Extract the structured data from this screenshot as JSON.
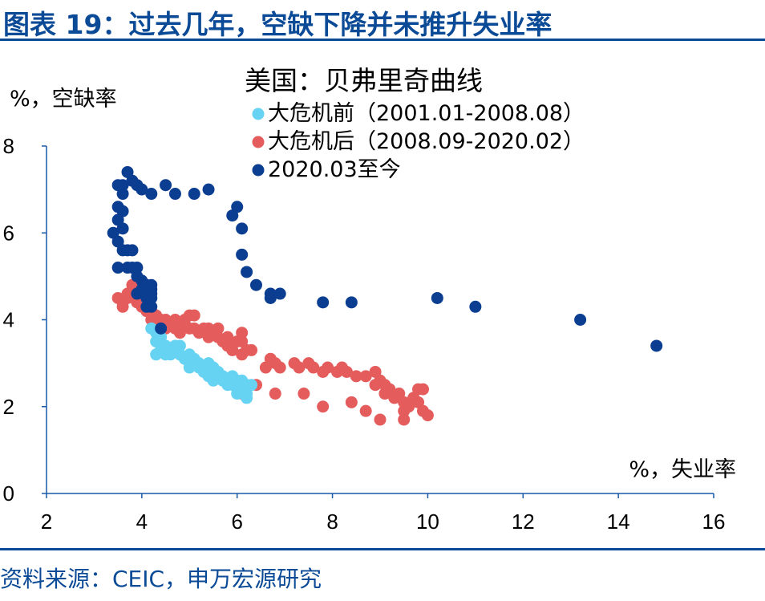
{
  "figure": {
    "title": "图表 19：过去几年，空缺下降并未推升失业率",
    "source": "资料来源：CEIC，申万宏源研究",
    "colors": {
      "brand": "#0b4a96"
    }
  },
  "chart_data": {
    "type": "scatter",
    "title": "美国：贝弗里奇曲线",
    "xlabel": "%，失业率",
    "ylabel": "%，空缺率",
    "xlim": [
      2,
      16
    ],
    "ylim": [
      0,
      8
    ],
    "xticks": [
      "2",
      "4",
      "6",
      "8",
      "10",
      "12",
      "14",
      "16"
    ],
    "yticks": [
      "0",
      "2",
      "4",
      "6",
      "8"
    ],
    "grid": false,
    "legend_position": "top-right",
    "series": [
      {
        "name": "大危机前（2001.01-2008.08）",
        "color": "#66d3f2",
        "points": [
          [
            4.2,
            3.8
          ],
          [
            4.3,
            3.7
          ],
          [
            4.3,
            3.5
          ],
          [
            4.4,
            3.6
          ],
          [
            4.5,
            3.4
          ],
          [
            4.4,
            3.3
          ],
          [
            4.3,
            3.2
          ],
          [
            4.6,
            3.3
          ],
          [
            4.7,
            3.4
          ],
          [
            4.6,
            3.2
          ],
          [
            4.5,
            3.2
          ],
          [
            4.8,
            3.4
          ],
          [
            4.8,
            3.2
          ],
          [
            4.9,
            3.1
          ],
          [
            5.0,
            3.0
          ],
          [
            5.0,
            3.2
          ],
          [
            5.1,
            3.1
          ],
          [
            5.1,
            3.0
          ],
          [
            5.0,
            2.9
          ],
          [
            5.2,
            2.9
          ],
          [
            5.2,
            3.0
          ],
          [
            5.3,
            2.8
          ],
          [
            5.3,
            2.9
          ],
          [
            5.4,
            2.8
          ],
          [
            5.4,
            3.0
          ],
          [
            5.5,
            2.9
          ],
          [
            5.5,
            2.8
          ],
          [
            5.4,
            2.7
          ],
          [
            5.6,
            2.7
          ],
          [
            5.5,
            2.6
          ],
          [
            5.7,
            2.7
          ],
          [
            5.7,
            2.6
          ],
          [
            5.8,
            2.6
          ],
          [
            5.6,
            2.8
          ],
          [
            5.9,
            2.7
          ],
          [
            5.9,
            2.5
          ],
          [
            6.0,
            2.6
          ],
          [
            6.1,
            2.6
          ],
          [
            6.0,
            2.5
          ],
          [
            5.8,
            2.5
          ],
          [
            6.0,
            2.3
          ],
          [
            6.1,
            2.4
          ],
          [
            6.2,
            2.5
          ],
          [
            6.3,
            2.5
          ],
          [
            6.2,
            2.3
          ],
          [
            6.2,
            2.2
          ]
        ]
      },
      {
        "name": "大危机后（2008.09-2020.02）",
        "color": "#e45c5c",
        "points": [
          [
            3.5,
            4.5
          ],
          [
            3.6,
            4.4
          ],
          [
            3.6,
            4.3
          ],
          [
            3.7,
            4.5
          ],
          [
            3.7,
            4.6
          ],
          [
            3.8,
            4.7
          ],
          [
            3.8,
            4.8
          ],
          [
            3.9,
            4.6
          ],
          [
            3.9,
            4.4
          ],
          [
            4.0,
            4.3
          ],
          [
            4.1,
            4.4
          ],
          [
            4.1,
            4.2
          ],
          [
            4.2,
            4.2
          ],
          [
            4.2,
            4.0
          ],
          [
            4.3,
            4.1
          ],
          [
            4.4,
            4.0
          ],
          [
            4.4,
            3.9
          ],
          [
            4.5,
            4.0
          ],
          [
            4.5,
            3.8
          ],
          [
            4.6,
            3.9
          ],
          [
            4.7,
            3.8
          ],
          [
            4.7,
            4.0
          ],
          [
            4.8,
            3.9
          ],
          [
            4.8,
            3.7
          ],
          [
            4.9,
            3.9
          ],
          [
            4.9,
            4.0
          ],
          [
            5.0,
            3.8
          ],
          [
            5.0,
            4.1
          ],
          [
            5.1,
            3.8
          ],
          [
            5.1,
            4.1
          ],
          [
            5.2,
            3.7
          ],
          [
            5.3,
            3.8
          ],
          [
            5.4,
            3.8
          ],
          [
            5.4,
            3.6
          ],
          [
            5.5,
            3.7
          ],
          [
            5.6,
            3.6
          ],
          [
            5.6,
            3.8
          ],
          [
            5.7,
            3.5
          ],
          [
            5.8,
            3.6
          ],
          [
            5.8,
            3.4
          ],
          [
            5.9,
            3.3
          ],
          [
            6.0,
            3.5
          ],
          [
            6.1,
            3.5
          ],
          [
            6.1,
            3.7
          ],
          [
            6.1,
            3.2
          ],
          [
            6.2,
            3.3
          ],
          [
            6.3,
            3.3
          ],
          [
            6.6,
            2.9
          ],
          [
            6.7,
            3.1
          ],
          [
            6.8,
            3.0
          ],
          [
            6.9,
            2.9
          ],
          [
            7.2,
            3.0
          ],
          [
            7.3,
            2.9
          ],
          [
            7.5,
            3.0
          ],
          [
            7.6,
            2.9
          ],
          [
            7.8,
            2.8
          ],
          [
            7.9,
            2.9
          ],
          [
            8.1,
            2.8
          ],
          [
            8.2,
            2.9
          ],
          [
            8.3,
            2.8
          ],
          [
            8.5,
            2.7
          ],
          [
            8.7,
            2.7
          ],
          [
            8.9,
            2.8
          ],
          [
            8.9,
            2.5
          ],
          [
            9.0,
            2.6
          ],
          [
            9.1,
            2.5
          ],
          [
            9.1,
            2.3
          ],
          [
            9.2,
            2.4
          ],
          [
            9.3,
            2.2
          ],
          [
            9.4,
            2.3
          ],
          [
            9.5,
            2.1
          ],
          [
            9.5,
            1.9
          ],
          [
            9.6,
            2.0
          ],
          [
            9.7,
            2.2
          ],
          [
            9.8,
            2.1
          ],
          [
            9.8,
            2.4
          ],
          [
            9.9,
            2.4
          ],
          [
            9.9,
            1.9
          ],
          [
            10.0,
            1.8
          ],
          [
            9.5,
            1.7
          ],
          [
            9.0,
            1.7
          ],
          [
            8.7,
            1.9
          ],
          [
            8.4,
            2.1
          ],
          [
            7.8,
            2.0
          ],
          [
            7.4,
            2.3
          ],
          [
            6.8,
            2.3
          ],
          [
            6.1,
            2.3
          ],
          [
            6.4,
            2.5
          ]
        ]
      },
      {
        "name": "2020.03至今",
        "color": "#0b3d91",
        "points": [
          [
            4.4,
            3.8
          ],
          [
            14.8,
            3.4
          ],
          [
            13.2,
            4.0
          ],
          [
            11.0,
            4.3
          ],
          [
            10.2,
            4.5
          ],
          [
            8.4,
            4.4
          ],
          [
            7.8,
            4.4
          ],
          [
            6.9,
            4.6
          ],
          [
            6.7,
            4.5
          ],
          [
            6.7,
            4.6
          ],
          [
            6.4,
            4.8
          ],
          [
            6.2,
            5.1
          ],
          [
            6.1,
            5.5
          ],
          [
            6.1,
            6.1
          ],
          [
            6.0,
            6.6
          ],
          [
            5.9,
            6.4
          ],
          [
            5.4,
            7.0
          ],
          [
            5.1,
            6.9
          ],
          [
            4.7,
            6.9
          ],
          [
            4.5,
            7.1
          ],
          [
            4.2,
            6.9
          ],
          [
            4.0,
            7.0
          ],
          [
            3.9,
            7.1
          ],
          [
            3.8,
            7.2
          ],
          [
            3.7,
            7.4
          ],
          [
            3.6,
            7.1
          ],
          [
            3.6,
            6.9
          ],
          [
            3.5,
            7.1
          ],
          [
            3.5,
            6.6
          ],
          [
            3.6,
            6.5
          ],
          [
            3.5,
            6.3
          ],
          [
            3.6,
            6.1
          ],
          [
            3.4,
            6.0
          ],
          [
            3.5,
            5.8
          ],
          [
            3.6,
            5.6
          ],
          [
            3.7,
            5.6
          ],
          [
            3.8,
            5.6
          ],
          [
            3.5,
            5.2
          ],
          [
            3.7,
            5.2
          ],
          [
            3.8,
            5.2
          ],
          [
            3.9,
            5.2
          ],
          [
            3.9,
            5.0
          ],
          [
            4.0,
            4.9
          ],
          [
            4.0,
            4.7
          ],
          [
            3.9,
            4.6
          ],
          [
            4.1,
            4.8
          ],
          [
            4.2,
            4.8
          ],
          [
            4.2,
            4.6
          ],
          [
            4.2,
            4.5
          ],
          [
            4.2,
            4.3
          ],
          [
            4.1,
            4.3
          ],
          [
            4.1,
            4.5
          ],
          [
            4.2,
            4.7
          ]
        ]
      }
    ]
  }
}
